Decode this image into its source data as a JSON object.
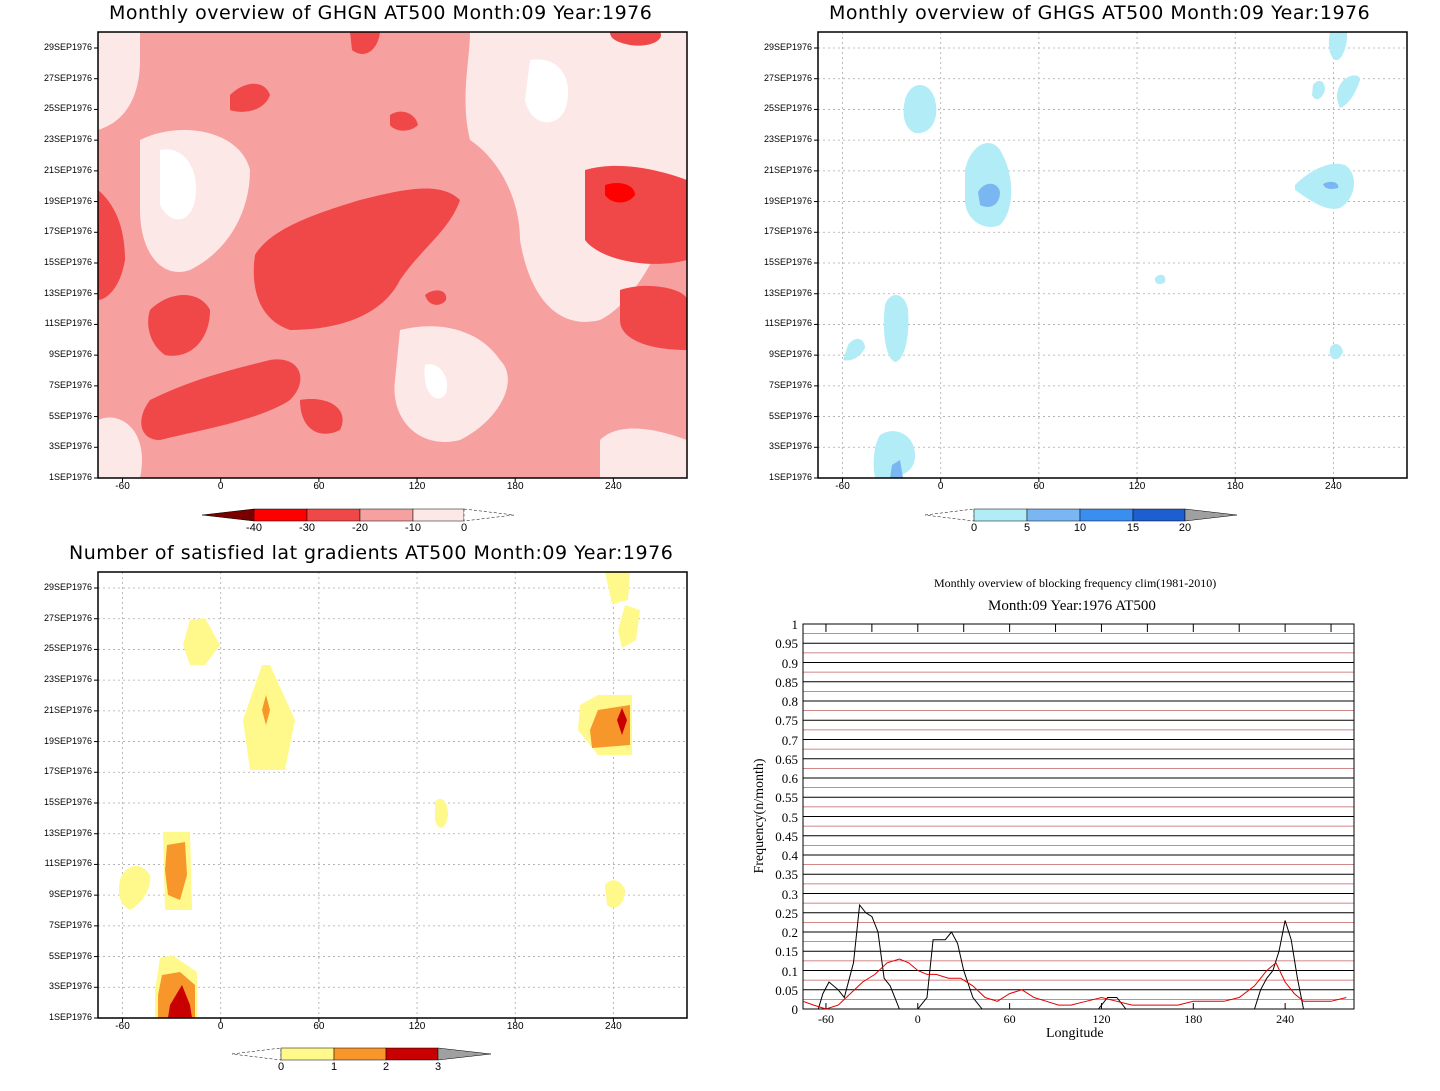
{
  "panels": {
    "ghgn": {
      "title": "Monthly overview of GHGN AT500 Month:09 Year:1976",
      "colorbar_labels": [
        "-40",
        "-30",
        "-20",
        "-10",
        "0"
      ],
      "colorbar_colors": [
        "#7a0000",
        "#ff0000",
        "#f04848",
        "#f7a0a0",
        "#fde8e8"
      ]
    },
    "ghgs": {
      "title": "Monthly overview of GHGS AT500 Month:09 Year:1976",
      "colorbar_labels": [
        "0",
        "5",
        "10",
        "15",
        "20"
      ],
      "colorbar_colors": [
        "#b2ecf7",
        "#7ab6f2",
        "#3a8ef0",
        "#1d5fd0",
        "#a0a0a0"
      ]
    },
    "lat": {
      "title": "Number of satisfied lat gradients AT500 Month:09 Year:1976",
      "colorbar_labels": [
        "0",
        "1",
        "2",
        "3"
      ],
      "colorbar_colors": [
        "#fff88a",
        "#f7962a",
        "#c80000",
        "#a0a0a0"
      ]
    },
    "freq": {
      "title1": "Monthly overview of blocking frequency clim(1981-2010)",
      "title2": "Month:09 Year:1976  AT500"
    }
  },
  "axes": {
    "date_ticks": [
      "29SEP1976",
      "27SEP1976",
      "25SEP1976",
      "23SEP1976",
      "21SEP1976",
      "19SEP1976",
      "17SEP1976",
      "15SEP1976",
      "13SEP1976",
      "11SEP1976",
      "9SEP1976",
      "7SEP1976",
      "5SEP1976",
      "3SEP1976",
      "1SEP1976"
    ],
    "lon_ticks": [
      "-60",
      "0",
      "60",
      "120",
      "180",
      "240"
    ]
  },
  "chart_data": [
    {
      "type": "heatmap",
      "title": "Monthly overview of GHGN AT500 Month:09 Year:1976",
      "xlim": [
        -75,
        285
      ],
      "x_ticks": [
        -60,
        0,
        60,
        120,
        180,
        240
      ],
      "y_ticks": [
        "1SEP1976",
        "3SEP1976",
        "5SEP1976",
        "7SEP1976",
        "9SEP1976",
        "11SEP1976",
        "13SEP1976",
        "15SEP1976",
        "17SEP1976",
        "19SEP1976",
        "21SEP1976",
        "23SEP1976",
        "25SEP1976",
        "27SEP1976",
        "29SEP1976"
      ],
      "levels": [
        -40,
        -30,
        -20,
        -10,
        0
      ],
      "grid": false
    },
    {
      "type": "heatmap",
      "title": "Monthly overview of GHGS AT500 Month:09 Year:1976",
      "xlim": [
        -75,
        285
      ],
      "x_ticks": [
        -60,
        0,
        60,
        120,
        180,
        240
      ],
      "levels": [
        0,
        5,
        10,
        15,
        20
      ],
      "grid": true
    },
    {
      "type": "heatmap",
      "title": "Number of satisfied lat gradients AT500 Month:09 Year:1976",
      "xlim": [
        -75,
        285
      ],
      "x_ticks": [
        -60,
        0,
        60,
        120,
        180,
        240
      ],
      "levels": [
        0,
        1,
        2,
        3
      ],
      "grid": true
    },
    {
      "type": "line",
      "title": "Monthly overview of blocking frequency clim(1981-2010)",
      "subtitle": "Month:09 Year:1976  AT500",
      "xlabel": "Longitude",
      "ylabel": "Frequency(n/month)",
      "xlim": [
        -75,
        285
      ],
      "ylim": [
        0,
        1
      ],
      "x_ticks": [
        -60,
        0,
        60,
        120,
        180,
        240
      ],
      "y_ticks": [
        "0",
        "0.05",
        "0.1",
        "0.15",
        "0.2",
        "0.25",
        "0.3",
        "0.35",
        "0.4",
        "0.45",
        "0.5",
        "0.55",
        "0.6",
        "0.65",
        "0.7",
        "0.75",
        "0.8",
        "0.85",
        "0.9",
        "0.95",
        "1"
      ],
      "series": [
        {
          "color": "#000000",
          "x": [
            -75,
            -65,
            -62,
            -58,
            -52,
            -48,
            -42,
            -38,
            -34,
            -30,
            -26,
            -22,
            -18,
            -12,
            -6,
            0,
            6,
            10,
            14,
            18,
            22,
            26,
            30,
            36,
            42,
            50,
            60,
            80,
            100,
            118,
            124,
            130,
            136,
            150,
            170,
            190,
            210,
            220,
            224,
            228,
            232,
            236,
            240,
            244,
            248,
            252,
            260,
            270,
            280
          ],
          "values": [
            0,
            0,
            0.04,
            0.07,
            0.05,
            0.03,
            0.12,
            0.27,
            0.25,
            0.24,
            0.2,
            0.08,
            0.06,
            0,
            0,
            0,
            0.03,
            0.18,
            0.18,
            0.18,
            0.2,
            0.17,
            0.1,
            0.03,
            0,
            0,
            0,
            0,
            0,
            0,
            0.03,
            0.03,
            0,
            0,
            0,
            0,
            0,
            0,
            0.05,
            0.08,
            0.1,
            0.15,
            0.23,
            0.18,
            0.08,
            0,
            0,
            0,
            0
          ]
        },
        {
          "color": "#e00000",
          "x": [
            -75,
            -68,
            -60,
            -52,
            -44,
            -36,
            -28,
            -20,
            -12,
            -6,
            0,
            6,
            12,
            20,
            28,
            36,
            44,
            52,
            60,
            68,
            76,
            84,
            92,
            100,
            110,
            120,
            130,
            140,
            150,
            160,
            170,
            180,
            190,
            200,
            210,
            220,
            228,
            234,
            240,
            246,
            252,
            260,
            270,
            280
          ],
          "values": [
            0.02,
            0.01,
            0,
            0.01,
            0.04,
            0.07,
            0.09,
            0.12,
            0.13,
            0.12,
            0.1,
            0.09,
            0.09,
            0.08,
            0.08,
            0.06,
            0.03,
            0.02,
            0.04,
            0.05,
            0.03,
            0.02,
            0.01,
            0.01,
            0.02,
            0.03,
            0.02,
            0.01,
            0.01,
            0.01,
            0.01,
            0.02,
            0.02,
            0.02,
            0.03,
            0.06,
            0.1,
            0.12,
            0.07,
            0.04,
            0.02,
            0.02,
            0.02,
            0.03
          ]
        }
      ]
    }
  ]
}
